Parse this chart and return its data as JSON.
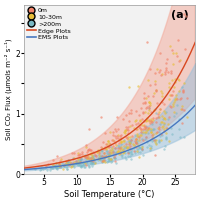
{
  "title": "(a)",
  "xlabel": "Soil Temperature (°C)",
  "ylabel": "Soil CO₂ Flux (μmols m⁻² s⁻¹)",
  "xlim": [
    2,
    28
  ],
  "ylim": [
    0,
    2.8
  ],
  "ytick_positions": [
    0,
    0.5,
    1.0,
    1.5,
    2.0,
    2.5
  ],
  "ytick_labels": [
    "0",
    "",
    "1",
    "",
    "2",
    ""
  ],
  "xticks": [
    5,
    10,
    15,
    20,
    25
  ],
  "bg_color": "#f2f2f2",
  "scatter_0m_color": "#f0836a",
  "scatter_10_30m_color": "#e8be3a",
  "scatter_200m_color": "#78b8c4",
  "edge_line_color": "#d84820",
  "ems_line_color": "#4878c0",
  "edge_ci_color": "#f2a898",
  "ems_ci_color": "#98c0dc",
  "edge_a": 0.08,
  "edge_b": 0.118,
  "ems_a": 0.062,
  "ems_b": 0.104,
  "seed": 42
}
